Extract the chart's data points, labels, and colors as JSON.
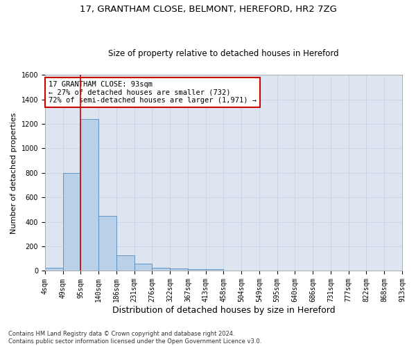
{
  "title_line1": "17, GRANTHAM CLOSE, BELMONT, HEREFORD, HR2 7ZG",
  "title_line2": "Size of property relative to detached houses in Hereford",
  "xlabel": "Distribution of detached houses by size in Hereford",
  "ylabel": "Number of detached properties",
  "footnote": "Contains HM Land Registry data © Crown copyright and database right 2024.\nContains public sector information licensed under the Open Government Licence v3.0.",
  "bin_labels": [
    "4sqm",
    "49sqm",
    "95sqm",
    "140sqm",
    "186sqm",
    "231sqm",
    "276sqm",
    "322sqm",
    "367sqm",
    "413sqm",
    "458sqm",
    "504sqm",
    "549sqm",
    "595sqm",
    "640sqm",
    "686sqm",
    "731sqm",
    "777sqm",
    "822sqm",
    "868sqm",
    "913sqm"
  ],
  "bar_heights": [
    25,
    800,
    1240,
    450,
    125,
    60,
    28,
    20,
    15,
    15,
    0,
    0,
    0,
    0,
    0,
    0,
    0,
    0,
    0,
    0
  ],
  "bar_color": "#b8d0e8",
  "bar_edge_color": "#5588bb",
  "vline_bin": 2,
  "annotation_text": "17 GRANTHAM CLOSE: 93sqm\n← 27% of detached houses are smaller (732)\n72% of semi-detached houses are larger (1,971) →",
  "annotation_box_color": "#ffffff",
  "annotation_box_edge_color": "#cc0000",
  "vline_color": "#cc0000",
  "ylim": [
    0,
    1600
  ],
  "yticks": [
    0,
    200,
    400,
    600,
    800,
    1000,
    1200,
    1400,
    1600
  ],
  "grid_color": "#c8d4e8",
  "bg_color": "#dde6f0",
  "title_fontsize": 9.5,
  "subtitle_fontsize": 8.5,
  "axis_label_fontsize": 8,
  "tick_fontsize": 7,
  "annotation_fontsize": 7.5
}
